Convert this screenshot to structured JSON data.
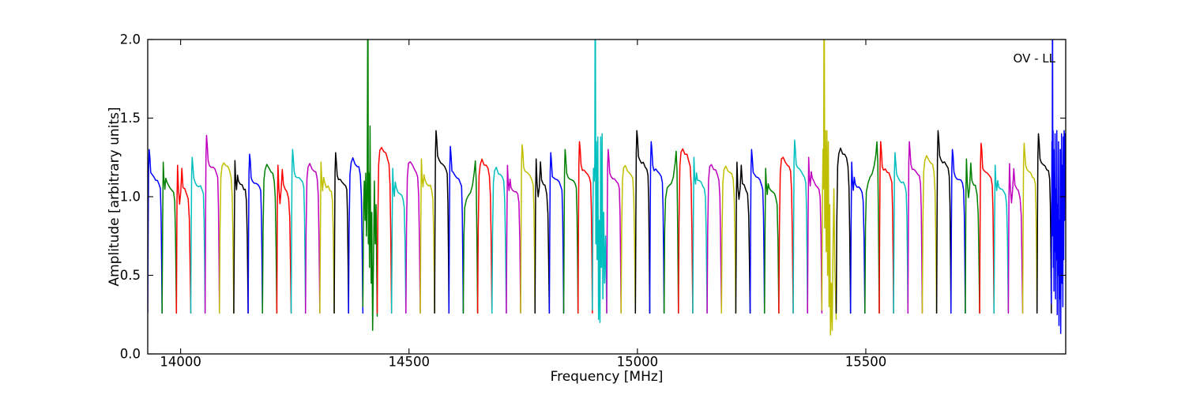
{
  "chart_data": {
    "type": "line",
    "title": "",
    "xlabel": "Frequency [MHz]",
    "ylabel": "Amplitude [arbitrary units]",
    "annotation": "OV - LL",
    "xlim": [
      13928,
      15937.6
    ],
    "ylim": [
      0.0,
      2.0
    ],
    "grid": false,
    "xticks": [
      {
        "value": 14000,
        "label": "14000"
      },
      {
        "value": 14500,
        "label": "14500"
      },
      {
        "value": 15000,
        "label": "15000"
      },
      {
        "value": 15500,
        "label": "15500"
      }
    ],
    "yticks": [
      {
        "value": 0.0,
        "label": "0.0"
      },
      {
        "value": 0.5,
        "label": "0.5"
      },
      {
        "value": 1.0,
        "label": "1.0"
      },
      {
        "value": 1.5,
        "label": "1.5"
      },
      {
        "value": 2.0,
        "label": "2.0"
      }
    ],
    "color_cycle": [
      "#0000ff",
      "#008000",
      "#ff0000",
      "#00bfbf",
      "#bf00bf",
      "#bfbf00",
      "#000000"
    ],
    "frame_color": "#000000",
    "background_color": "#ffffff",
    "line_width": 1.5,
    "baseline_amplitude": 0.26,
    "typical_peak_range": [
      1.18,
      1.42
    ],
    "start_freq_mhz": 13928,
    "subband_width_mhz": 31.4,
    "n_subbands": 64,
    "anomalous_subband_center_freqs_mhz": [
      14410,
      14910,
      15410,
      15910
    ],
    "seed": 42,
    "profiles": {
      "A": {
        "mode": "rel",
        "pts": [
          [
            0,
            0
          ],
          [
            0.03,
            0.5
          ],
          [
            0.06,
            0.88
          ],
          [
            0.1,
            1.0
          ],
          [
            0.15,
            0.95
          ],
          [
            0.21,
            0.86
          ],
          [
            0.3,
            0.84
          ],
          [
            0.42,
            0.83
          ],
          [
            0.55,
            0.82
          ],
          [
            0.68,
            0.81
          ],
          [
            0.8,
            0.79
          ],
          [
            0.88,
            0.76
          ],
          [
            0.93,
            0.6
          ],
          [
            0.97,
            0.3
          ],
          [
            1,
            0
          ]
        ]
      },
      "B": {
        "mode": "rel",
        "pts": [
          [
            0,
            0
          ],
          [
            0.04,
            0.6
          ],
          [
            0.08,
            1.0
          ],
          [
            0.13,
            0.88
          ],
          [
            0.19,
            0.82
          ],
          [
            0.26,
            0.9
          ],
          [
            0.33,
            0.86
          ],
          [
            0.45,
            0.84
          ],
          [
            0.58,
            0.83
          ],
          [
            0.7,
            0.82
          ],
          [
            0.8,
            0.8
          ],
          [
            0.88,
            0.74
          ],
          [
            0.94,
            0.5
          ],
          [
            1,
            0
          ]
        ]
      },
      "C": {
        "mode": "rel",
        "pts": [
          [
            0,
            0
          ],
          [
            0.04,
            0.55
          ],
          [
            0.1,
            0.9
          ],
          [
            0.18,
            0.98
          ],
          [
            0.3,
            1.0
          ],
          [
            0.45,
            0.97
          ],
          [
            0.6,
            0.96
          ],
          [
            0.72,
            0.94
          ],
          [
            0.82,
            0.9
          ],
          [
            0.89,
            0.78
          ],
          [
            0.94,
            0.5
          ],
          [
            1,
            0
          ]
        ]
      },
      "D": {
        "mode": "rel",
        "pts": [
          [
            0,
            0
          ],
          [
            0.04,
            0.5
          ],
          [
            0.1,
            0.7
          ],
          [
            0.22,
            0.76
          ],
          [
            0.36,
            0.78
          ],
          [
            0.5,
            0.8
          ],
          [
            0.64,
            0.84
          ],
          [
            0.76,
            0.92
          ],
          [
            0.84,
            1.0
          ],
          [
            0.9,
            0.88
          ],
          [
            0.95,
            0.5
          ],
          [
            1,
            0
          ]
        ]
      },
      "E": {
        "mode": "rel",
        "pts": [
          [
            0,
            0
          ],
          [
            0.04,
            0.75
          ],
          [
            0.08,
            1.0
          ],
          [
            0.14,
            0.84
          ],
          [
            0.22,
            0.75
          ],
          [
            0.3,
            0.82
          ],
          [
            0.38,
            0.97
          ],
          [
            0.46,
            0.86
          ],
          [
            0.58,
            0.84
          ],
          [
            0.7,
            0.82
          ],
          [
            0.82,
            0.78
          ],
          [
            0.9,
            0.65
          ],
          [
            0.95,
            0.35
          ],
          [
            1,
            0
          ]
        ]
      },
      "G": {
        "mode": "abs",
        "pts": [
          [
            0,
            0.3
          ],
          [
            0.05,
            0.95
          ],
          [
            0.1,
            1.1
          ],
          [
            0.15,
            0.85
          ],
          [
            0.2,
            1.15
          ],
          [
            0.25,
            0.75
          ],
          [
            0.3,
            1.05
          ],
          [
            0.35,
            2.6
          ],
          [
            0.38,
            0.7
          ],
          [
            0.42,
            1.15
          ],
          [
            0.46,
            0.55
          ],
          [
            0.5,
            1.45
          ],
          [
            0.54,
            0.8
          ],
          [
            0.58,
            0.45
          ],
          [
            0.62,
            0.9
          ],
          [
            0.68,
            0.15
          ],
          [
            0.74,
            0.6
          ],
          [
            0.8,
            1.1
          ],
          [
            0.86,
            0.7
          ],
          [
            0.92,
            0.95
          ],
          [
            1,
            0.24
          ]
        ]
      },
      "H": {
        "mode": "abs",
        "pts": [
          [
            0,
            0.28
          ],
          [
            0.04,
            0.95
          ],
          [
            0.08,
            1.18
          ],
          [
            0.13,
            1.1
          ],
          [
            0.17,
            1.22
          ],
          [
            0.2,
            2.6
          ],
          [
            0.24,
            0.7
          ],
          [
            0.28,
            1.35
          ],
          [
            0.33,
            0.6
          ],
          [
            0.38,
            1.38
          ],
          [
            0.43,
            0.22
          ],
          [
            0.48,
            0.85
          ],
          [
            0.53,
            0.2
          ],
          [
            0.58,
            1.38
          ],
          [
            0.63,
            0.55
          ],
          [
            0.68,
            1.4
          ],
          [
            0.73,
            0.35
          ],
          [
            0.79,
            0.9
          ],
          [
            0.85,
            0.45
          ],
          [
            0.92,
            0.75
          ],
          [
            1,
            0.26
          ]
        ]
      },
      "I": {
        "mode": "abs",
        "pts": [
          [
            0,
            0.28
          ],
          [
            0.04,
            1.0
          ],
          [
            0.08,
            1.3
          ],
          [
            0.12,
            1.05
          ],
          [
            0.16,
            2.6
          ],
          [
            0.2,
            0.8
          ],
          [
            0.25,
            1.42
          ],
          [
            0.3,
            0.65
          ],
          [
            0.35,
            1.42
          ],
          [
            0.4,
            0.5
          ],
          [
            0.45,
            1.35
          ],
          [
            0.5,
            0.3
          ],
          [
            0.55,
            0.95
          ],
          [
            0.6,
            0.12
          ],
          [
            0.66,
            0.45
          ],
          [
            0.72,
            0.15
          ],
          [
            0.78,
            0.7
          ],
          [
            0.84,
            1.05
          ],
          [
            0.9,
            0.55
          ],
          [
            1,
            0.22
          ]
        ]
      },
      "J": {
        "mode": "abs",
        "pts": [
          [
            0,
            0.32
          ],
          [
            0.02,
            0.9
          ],
          [
            0.04,
            1.35
          ],
          [
            0.06,
            0.75
          ],
          [
            0.08,
            2.6
          ],
          [
            0.1,
            0.95
          ],
          [
            0.12,
            1.42
          ],
          [
            0.14,
            0.55
          ],
          [
            0.16,
            1.3
          ],
          [
            0.18,
            0.4
          ],
          [
            0.2,
            1.15
          ],
          [
            0.23,
            0.65
          ],
          [
            0.26,
            1.4
          ],
          [
            0.29,
            0.35
          ],
          [
            0.32,
            1.05
          ],
          [
            0.35,
            0.6
          ],
          [
            0.38,
            1.42
          ],
          [
            0.41,
            0.25
          ],
          [
            0.44,
            0.95
          ],
          [
            0.47,
            0.5
          ],
          [
            0.5,
            1.35
          ],
          [
            0.53,
            0.18
          ],
          [
            0.56,
            0.85
          ],
          [
            0.59,
            0.35
          ],
          [
            0.62,
            1.3
          ],
          [
            0.65,
            0.13
          ],
          [
            0.68,
            0.75
          ],
          [
            0.71,
            1.4
          ],
          [
            0.74,
            0.45
          ],
          [
            0.77,
            1.2
          ],
          [
            0.8,
            0.3
          ],
          [
            0.83,
            1.38
          ],
          [
            0.86,
            0.6
          ],
          [
            0.89,
            1.42
          ],
          [
            0.92,
            0.85
          ],
          [
            0.95,
            1.4
          ],
          [
            0.98,
            1.1
          ],
          [
            1,
            1.3
          ]
        ]
      }
    },
    "subbands": [
      [
        "A",
        1.3
      ],
      [
        "B",
        1.22
      ],
      [
        "E",
        1.2
      ],
      [
        "A",
        1.25
      ],
      [
        "A",
        1.39
      ],
      [
        "C",
        1.22
      ],
      [
        "B",
        1.23
      ],
      [
        "A",
        1.27
      ],
      [
        "C",
        1.2
      ],
      [
        "E",
        1.2
      ],
      [
        "A",
        1.3
      ],
      [
        "C",
        1.21
      ],
      [
        "B",
        1.22
      ],
      [
        "A",
        1.28
      ],
      [
        "C",
        1.24
      ],
      [
        "G",
        2.0
      ],
      [
        "C",
        1.31
      ],
      [
        "B",
        1.18
      ],
      [
        "C",
        1.22
      ],
      [
        "B",
        1.24
      ],
      [
        "A",
        1.42
      ],
      [
        "A",
        1.32
      ],
      [
        "D",
        1.22
      ],
      [
        "C",
        1.23
      ],
      [
        "C",
        1.18
      ],
      [
        "B",
        1.2
      ],
      [
        "A",
        1.33
      ],
      [
        "E",
        1.24
      ],
      [
        "A",
        1.28
      ],
      [
        "A",
        1.3
      ],
      [
        "A",
        1.35
      ],
      [
        "H",
        2.0
      ],
      [
        "A",
        1.3
      ],
      [
        "C",
        1.2
      ],
      [
        "A",
        1.42
      ],
      [
        "A",
        1.35
      ],
      [
        "D",
        1.3
      ],
      [
        "C",
        1.3
      ],
      [
        "B",
        1.25
      ],
      [
        "C",
        1.2
      ],
      [
        "C",
        1.19
      ],
      [
        "E",
        1.22
      ],
      [
        "A",
        1.3
      ],
      [
        "B",
        1.18
      ],
      [
        "C",
        1.25
      ],
      [
        "A",
        1.36
      ],
      [
        "B",
        1.25
      ],
      [
        "I",
        2.0
      ],
      [
        "C",
        1.3
      ],
      [
        "B",
        1.22
      ],
      [
        "D",
        1.36
      ],
      [
        "A",
        1.35
      ],
      [
        "A",
        1.28
      ],
      [
        "A",
        1.35
      ],
      [
        "C",
        1.26
      ],
      [
        "A",
        1.42
      ],
      [
        "A",
        1.3
      ],
      [
        "E",
        1.24
      ],
      [
        "A",
        1.34
      ],
      [
        "B",
        1.2
      ],
      [
        "E",
        1.21
      ],
      [
        "A",
        1.34
      ],
      [
        "A",
        1.4
      ],
      [
        "J",
        2.0
      ]
    ]
  }
}
